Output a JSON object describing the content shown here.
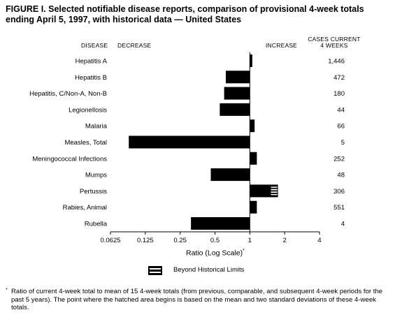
{
  "title_line1": "FIGURE I. Selected notifiable disease reports, comparison of provisional 4-week totals",
  "title_line2": "ending April 5, 1997, with historical data — United States",
  "headers": {
    "disease": "DISEASE",
    "decrease": "DECREASE",
    "increase": "INCREASE",
    "cases_line1": "CASES CURRENT",
    "cases_line2": "4 WEEKS"
  },
  "axis_title": "Ratio (Log Scale)",
  "axis_title_mark": "*",
  "legend_label": "Beyond Historical Limits",
  "footnote_mark": "*",
  "footnote": "Ratio of current 4-week total to mean of 15 4-week totals (from previous, comparable, and subsequent 4-week periods for the past 5 years). The point where the hatched area begins is based on the mean and two standard deviations of these 4-week totals.",
  "chart_data": {
    "type": "bar",
    "orientation": "horizontal",
    "xscale": "log2",
    "xlabel": "Ratio (Log Scale)",
    "xlim": [
      0.0625,
      4
    ],
    "xticks": [
      0.0625,
      0.125,
      0.25,
      0.5,
      1,
      2,
      4
    ],
    "xtick_labels": [
      "0.0625",
      "0.125",
      "0.25",
      "0.5",
      "1",
      "2",
      "4"
    ],
    "baseline": 1,
    "categories": [
      "Hepatitis A",
      "Hepatitis B",
      "Hepatitis, C/Non-A, Non-B",
      "Legionellosis",
      "Malaria",
      "Measles, Total",
      "Meningococcal Infections",
      "Mumps",
      "Pertussis",
      "Rabies, Animal",
      "Rubella"
    ],
    "values": [
      1.05,
      0.62,
      0.6,
      0.55,
      1.1,
      0.09,
      1.15,
      0.46,
      1.75,
      1.15,
      0.31
    ],
    "cases": [
      "1,446",
      "472",
      "180",
      "44",
      "66",
      "5",
      "252",
      "48",
      "306",
      "551",
      "4"
    ],
    "beyond_limits": [
      {
        "category": "Pertussis",
        "from": 1.5,
        "to": 1.75
      }
    ],
    "colors": {
      "bar": "#000000",
      "hatch_bg": "#ffffff"
    }
  }
}
